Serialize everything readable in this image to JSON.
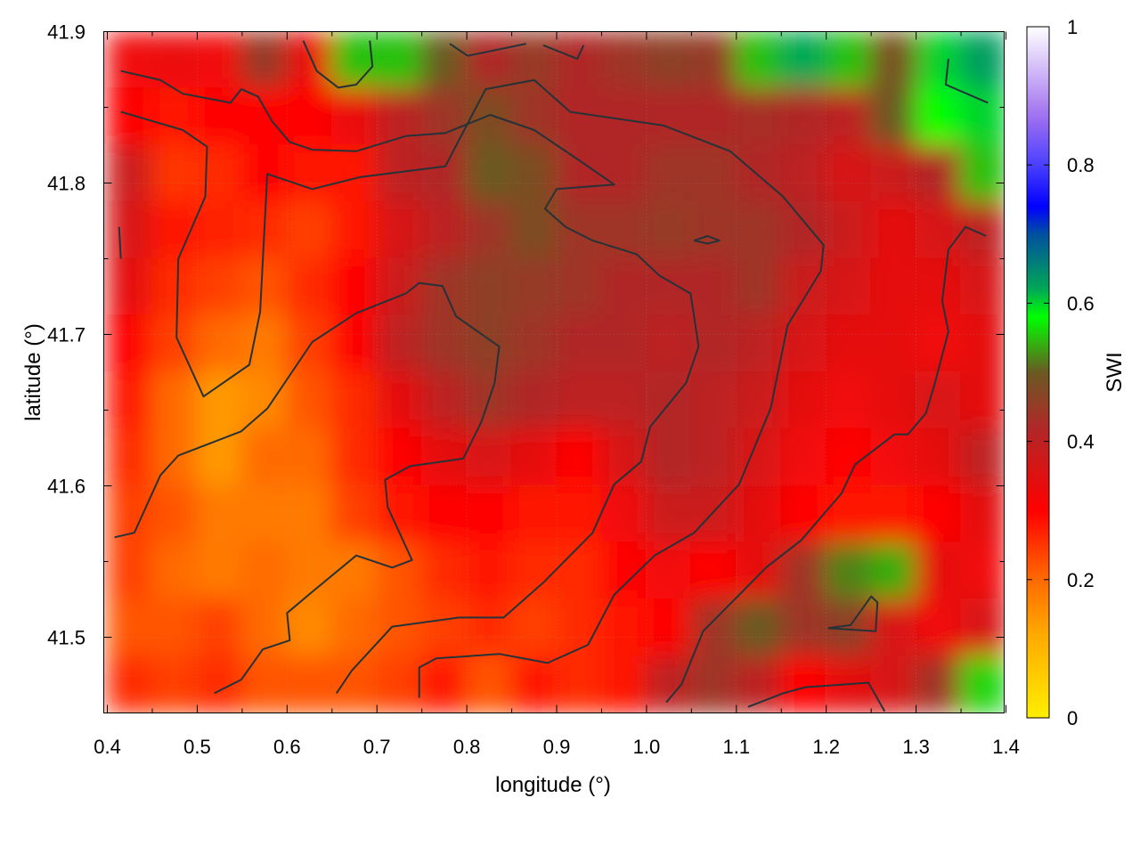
{
  "chart_data": {
    "type": "heatmap",
    "title": "",
    "xlabel": "longitude (°)",
    "ylabel": "latitude (°)",
    "colorbar_label": "SWI",
    "xlim": [
      0.396,
      1.398
    ],
    "ylim": [
      41.45,
      41.9
    ],
    "x_ticks": [
      "0.4",
      "0.5",
      "0.6",
      "0.7",
      "0.8",
      "0.9",
      "1.0",
      "1.1",
      "1.2",
      "1.3",
      "1.4"
    ],
    "y_ticks": [
      "41.5",
      "41.6",
      "41.7",
      "41.8",
      "41.9"
    ],
    "colorbar_range": [
      0,
      1
    ],
    "colorbar_ticks": [
      "0",
      "0.2",
      "0.4",
      "0.6",
      "0.8",
      "1"
    ],
    "grid": true,
    "palette": [
      {
        "v": 0,
        "c": "#ffee00"
      },
      {
        "v": 0.12,
        "c": "#ffaa00"
      },
      {
        "v": 0.2,
        "c": "#ff6a00"
      },
      {
        "v": 0.3,
        "c": "#ff0000"
      },
      {
        "v": 0.36,
        "c": "#d81414"
      },
      {
        "v": 0.42,
        "c": "#b02828"
      },
      {
        "v": 0.5,
        "c": "#6a5a22"
      },
      {
        "v": 0.58,
        "c": "#00ff00"
      },
      {
        "v": 0.62,
        "c": "#00a855"
      },
      {
        "v": 0.7,
        "c": "#0050a0"
      },
      {
        "v": 0.74,
        "c": "#0000ff"
      },
      {
        "v": 0.8,
        "c": "#4a40ff"
      },
      {
        "v": 0.87,
        "c": "#a070f0"
      },
      {
        "v": 1,
        "c": "#ffffff"
      }
    ],
    "grid_lon": [
      0.425,
      0.475,
      0.525,
      0.575,
      0.625,
      0.675,
      0.725,
      0.775,
      0.825,
      0.875,
      0.925,
      0.975,
      1.025,
      1.075,
      1.125,
      1.175,
      1.225,
      1.275,
      1.325,
      1.375
    ],
    "grid_lat": [
      41.88,
      41.84,
      41.8,
      41.77,
      41.73,
      41.69,
      41.65,
      41.62,
      41.58,
      41.54,
      41.51,
      41.47
    ],
    "values": [
      [
        0.32,
        0.33,
        0.32,
        0.45,
        0.33,
        0.55,
        0.55,
        0.5,
        0.42,
        0.45,
        0.42,
        0.44,
        0.46,
        0.45,
        0.55,
        0.62,
        0.55,
        0.48,
        0.6,
        0.63
      ],
      [
        0.3,
        0.28,
        0.3,
        0.3,
        0.3,
        0.33,
        0.4,
        0.44,
        0.48,
        0.44,
        0.42,
        0.42,
        0.42,
        0.42,
        0.43,
        0.42,
        0.4,
        0.5,
        0.58,
        0.6
      ],
      [
        0.38,
        0.25,
        0.26,
        0.3,
        0.28,
        0.28,
        0.4,
        0.42,
        0.5,
        0.48,
        0.42,
        0.42,
        0.44,
        0.44,
        0.42,
        0.4,
        0.36,
        0.38,
        0.42,
        0.55
      ],
      [
        0.36,
        0.28,
        0.27,
        0.26,
        0.24,
        0.28,
        0.36,
        0.4,
        0.44,
        0.48,
        0.44,
        0.44,
        0.45,
        0.44,
        0.44,
        0.42,
        0.38,
        0.34,
        0.36,
        0.4
      ],
      [
        0.34,
        0.26,
        0.24,
        0.22,
        0.26,
        0.3,
        0.38,
        0.44,
        0.46,
        0.45,
        0.44,
        0.42,
        0.42,
        0.42,
        0.44,
        0.38,
        0.36,
        0.34,
        0.34,
        0.36
      ],
      [
        0.3,
        0.24,
        0.2,
        0.18,
        0.24,
        0.3,
        0.4,
        0.44,
        0.46,
        0.44,
        0.42,
        0.42,
        0.4,
        0.42,
        0.4,
        0.36,
        0.34,
        0.34,
        0.32,
        0.34
      ],
      [
        0.28,
        0.2,
        0.14,
        0.16,
        0.22,
        0.26,
        0.34,
        0.4,
        0.44,
        0.42,
        0.4,
        0.4,
        0.42,
        0.4,
        0.38,
        0.34,
        0.32,
        0.34,
        0.36,
        0.34
      ],
      [
        0.26,
        0.2,
        0.14,
        0.2,
        0.2,
        0.26,
        0.3,
        0.34,
        0.36,
        0.34,
        0.3,
        0.36,
        0.42,
        0.4,
        0.36,
        0.32,
        0.3,
        0.32,
        0.34,
        0.4
      ],
      [
        0.24,
        0.22,
        0.18,
        0.18,
        0.18,
        0.24,
        0.28,
        0.3,
        0.3,
        0.28,
        0.28,
        0.32,
        0.38,
        0.38,
        0.34,
        0.3,
        0.28,
        0.28,
        0.3,
        0.34
      ],
      [
        0.24,
        0.2,
        0.18,
        0.2,
        0.18,
        0.18,
        0.22,
        0.26,
        0.28,
        0.26,
        0.26,
        0.3,
        0.32,
        0.3,
        0.34,
        0.44,
        0.52,
        0.54,
        0.34,
        0.32
      ],
      [
        0.22,
        0.22,
        0.24,
        0.2,
        0.16,
        0.2,
        0.22,
        0.24,
        0.26,
        0.24,
        0.26,
        0.28,
        0.3,
        0.44,
        0.5,
        0.44,
        0.46,
        0.36,
        0.32,
        0.36
      ],
      [
        0.26,
        0.24,
        0.26,
        0.22,
        0.22,
        0.22,
        0.24,
        0.28,
        0.22,
        0.28,
        0.26,
        0.28,
        0.4,
        0.44,
        0.4,
        0.3,
        0.34,
        0.36,
        0.44,
        0.56
      ]
    ],
    "contour_color": "#263238",
    "contours": [
      [
        [
          0.415,
          41.847
        ],
        [
          0.484,
          41.835
        ],
        [
          0.511,
          41.824
        ],
        [
          0.509,
          41.791
        ],
        [
          0.479,
          41.75
        ],
        [
          0.477,
          41.698
        ],
        [
          0.507,
          41.659
        ],
        [
          0.558,
          41.68
        ],
        [
          0.57,
          41.715
        ],
        [
          0.578,
          41.806
        ],
        [
          0.628,
          41.796
        ],
        [
          0.682,
          41.804
        ],
        [
          0.776,
          41.811
        ],
        [
          0.821,
          41.862
        ],
        [
          0.875,
          41.868
        ],
        [
          0.915,
          41.847
        ],
        [
          1.019,
          41.838
        ],
        [
          1.093,
          41.821
        ],
        [
          1.152,
          41.791
        ],
        [
          1.197,
          41.759
        ],
        [
          1.194,
          41.742
        ],
        [
          1.157,
          41.706
        ],
        [
          1.138,
          41.651
        ],
        [
          1.103,
          41.601
        ],
        [
          1.053,
          41.569
        ],
        [
          1.009,
          41.554
        ],
        [
          0.964,
          41.528
        ],
        [
          0.935,
          41.495
        ],
        [
          0.89,
          41.483
        ],
        [
          0.836,
          41.489
        ],
        [
          0.766,
          41.486
        ],
        [
          0.747,
          41.48
        ],
        [
          0.747,
          41.46
        ]
      ],
      [
        [
          0.408,
          41.566
        ],
        [
          0.43,
          41.569
        ],
        [
          0.459,
          41.607
        ],
        [
          0.479,
          41.62
        ],
        [
          0.549,
          41.636
        ],
        [
          0.578,
          41.651
        ],
        [
          0.628,
          41.695
        ],
        [
          0.677,
          41.714
        ],
        [
          0.732,
          41.727
        ],
        [
          0.747,
          41.734
        ],
        [
          0.773,
          41.732
        ],
        [
          0.788,
          41.712
        ],
        [
          0.836,
          41.692
        ],
        [
          0.831,
          41.668
        ],
        [
          0.816,
          41.642
        ],
        [
          0.796,
          41.618
        ],
        [
          0.737,
          41.613
        ],
        [
          0.709,
          41.604
        ],
        [
          0.712,
          41.586
        ],
        [
          0.739,
          41.551
        ],
        [
          0.717,
          41.546
        ],
        [
          0.677,
          41.554
        ],
        [
          0.628,
          41.53
        ],
        [
          0.6,
          41.516
        ],
        [
          0.603,
          41.498
        ],
        [
          0.573,
          41.492
        ],
        [
          0.549,
          41.472
        ],
        [
          0.519,
          41.463
        ]
      ],
      [
        [
          0.655,
          41.463
        ],
        [
          0.672,
          41.478
        ],
        [
          0.717,
          41.507
        ],
        [
          0.791,
          41.513
        ],
        [
          0.841,
          41.513
        ],
        [
          0.885,
          41.536
        ],
        [
          0.94,
          41.569
        ],
        [
          0.964,
          41.601
        ],
        [
          0.994,
          41.616
        ],
        [
          1.004,
          41.639
        ],
        [
          1.044,
          41.668
        ],
        [
          1.058,
          41.692
        ],
        [
          1.049,
          41.727
        ],
        [
          1.014,
          41.739
        ],
        [
          0.989,
          41.753
        ],
        [
          0.94,
          41.762
        ],
        [
          0.91,
          41.771
        ],
        [
          0.887,
          41.783
        ],
        [
          0.9,
          41.796
        ],
        [
          0.964,
          41.799
        ],
        [
          0.925,
          41.815
        ],
        [
          0.875,
          41.835
        ],
        [
          0.826,
          41.845
        ],
        [
          0.776,
          41.833
        ],
        [
          0.732,
          41.831
        ],
        [
          0.677,
          41.821
        ],
        [
          0.628,
          41.822
        ],
        [
          0.603,
          41.827
        ],
        [
          0.583,
          41.841
        ],
        [
          0.568,
          41.857
        ],
        [
          0.549,
          41.862
        ],
        [
          0.537,
          41.853
        ],
        [
          0.484,
          41.859
        ],
        [
          0.459,
          41.868
        ],
        [
          0.415,
          41.874
        ]
      ],
      [
        [
          1.022,
          41.457
        ],
        [
          1.039,
          41.469
        ],
        [
          1.063,
          41.504
        ],
        [
          1.103,
          41.528
        ],
        [
          1.133,
          41.546
        ],
        [
          1.172,
          41.564
        ],
        [
          1.217,
          41.595
        ],
        [
          1.232,
          41.614
        ],
        [
          1.276,
          41.634
        ],
        [
          1.291,
          41.634
        ],
        [
          1.311,
          41.648
        ],
        [
          1.321,
          41.668
        ],
        [
          1.336,
          41.702
        ],
        [
          1.329,
          41.722
        ],
        [
          1.336,
          41.756
        ],
        [
          1.355,
          41.771
        ],
        [
          1.378,
          41.765
        ]
      ],
      [
        [
          1.113,
          41.454
        ],
        [
          1.152,
          41.463
        ],
        [
          1.177,
          41.467
        ],
        [
          1.247,
          41.47
        ],
        [
          1.265,
          41.451
        ]
      ],
      [
        [
          1.202,
          41.506
        ],
        [
          1.227,
          41.508
        ],
        [
          1.25,
          41.527
        ],
        [
          1.257,
          41.523
        ],
        [
          1.255,
          41.504
        ],
        [
          1.202,
          41.506
        ]
      ],
      [
        [
          0.618,
          41.894
        ],
        [
          0.633,
          41.874
        ],
        [
          0.657,
          41.863
        ],
        [
          0.677,
          41.865
        ],
        [
          0.695,
          41.877
        ],
        [
          0.692,
          41.894
        ]
      ],
      [
        [
          0.781,
          41.892
        ],
        [
          0.801,
          41.884
        ],
        [
          0.866,
          41.892
        ]
      ],
      [
        [
          0.885,
          41.891
        ],
        [
          0.923,
          41.882
        ],
        [
          0.93,
          41.891
        ]
      ],
      [
        [
          1.336,
          41.882
        ],
        [
          1.333,
          41.865
        ],
        [
          1.38,
          41.853
        ]
      ],
      [
        [
          0.413,
          41.771
        ],
        [
          0.415,
          41.75
        ]
      ],
      [
        [
          1.053,
          41.762
        ],
        [
          1.068,
          41.765
        ],
        [
          1.081,
          41.762
        ],
        [
          1.068,
          41.76
        ],
        [
          1.053,
          41.762
        ]
      ]
    ]
  }
}
